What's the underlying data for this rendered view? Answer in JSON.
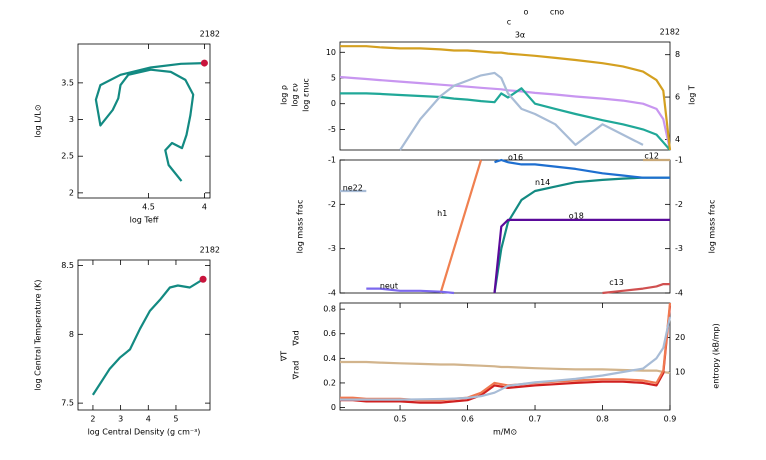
{
  "chart_data": [
    {
      "type": "line",
      "title": "2182",
      "xlabel": "log Teff",
      "ylabel": "log L/L⊙",
      "xlim": [
        5.13,
        3.95
      ],
      "ylim": [
        1.93,
        4.03
      ],
      "xticks": [
        4.5,
        4
      ],
      "yticks": [
        2,
        2.5,
        3,
        3.5
      ],
      "color": "#138a82",
      "marker_color": "#c8143c",
      "x": [
        4.205,
        4.32,
        4.35,
        4.29,
        4.2,
        4.16,
        4.125,
        4.1,
        4.17,
        4.3,
        4.48,
        4.68,
        4.75,
        4.77,
        4.82,
        4.93,
        4.97,
        4.93,
        4.75,
        4.48,
        4.21,
        4.0
      ],
      "values": [
        2.16,
        2.38,
        2.58,
        2.68,
        2.61,
        2.79,
        3.06,
        3.34,
        3.54,
        3.65,
        3.68,
        3.61,
        3.47,
        3.29,
        3.13,
        2.92,
        3.27,
        3.47,
        3.61,
        3.71,
        3.76,
        3.77
      ]
    },
    {
      "type": "line",
      "title": "2182",
      "xlabel": "log Central Density (g cm⁻³)",
      "ylabel": "log Central Temperature (K)",
      "xlim": [
        1.46,
        6.23
      ],
      "ylim": [
        7.45,
        8.54
      ],
      "xticks": [
        2,
        3,
        4,
        5
      ],
      "yticks": [
        7.5,
        8,
        8.5
      ],
      "color": "#138a82",
      "marker_color": "#c8143c",
      "x": [
        2.0,
        2.61,
        2.97,
        3.34,
        3.7,
        4.06,
        4.42,
        4.78,
        5.07,
        5.5,
        5.98
      ],
      "values": [
        7.56,
        7.75,
        7.83,
        7.89,
        8.04,
        8.17,
        8.25,
        8.34,
        8.355,
        8.34,
        8.4
      ]
    },
    {
      "type": "line",
      "title": "2182",
      "annotations": [
        "c",
        "o",
        "cno",
        "3α"
      ],
      "y2label": "log T",
      "xlim": [
        0.411,
        0.9
      ],
      "ylim": [
        -9,
        12
      ],
      "yticks": [
        -5,
        0,
        5,
        10
      ],
      "y2lim": [
        3.5,
        8.6
      ],
      "y2ticks": [
        4,
        6,
        8
      ],
      "x": [
        0.411,
        0.43,
        0.45,
        0.47,
        0.5,
        0.53,
        0.56,
        0.58,
        0.6,
        0.62,
        0.64,
        0.65,
        0.66,
        0.68,
        0.7,
        0.73,
        0.76,
        0.8,
        0.83,
        0.86,
        0.88,
        0.89,
        0.9
      ],
      "series": [
        {
          "name": "log ρ",
          "color": "#c896f0",
          "values": [
            5.2,
            5,
            4.8,
            4.6,
            4.3,
            4,
            3.7,
            3.5,
            3.3,
            3.1,
            2.9,
            2.8,
            2.6,
            2.4,
            2.1,
            1.8,
            1.4,
            1.0,
            0.6,
            0,
            -1,
            -3,
            -9
          ]
        },
        {
          "name": "log εν",
          "color": "#20a898",
          "values": [
            2,
            2,
            2,
            1.9,
            1.7,
            1.5,
            1.3,
            1.0,
            0.8,
            0.5,
            0.3,
            2.0,
            1.2,
            3.0,
            0,
            -1,
            -2,
            -3.2,
            -4,
            -5,
            -6,
            -7.5,
            -9
          ]
        },
        {
          "name": "log εnuc",
          "color": "#a8bcd6",
          "values": [
            null,
            null,
            null,
            null,
            -9,
            -3,
            1.5,
            3.5,
            4.5,
            5.5,
            6,
            5,
            2,
            -1,
            -2,
            -4,
            -8,
            -4,
            -6,
            -8,
            null,
            null,
            null
          ]
        },
        {
          "name": "log T",
          "color": "#d4a020",
          "axis": "y2",
          "values": [
            8.4,
            8.4,
            8.4,
            8.35,
            8.3,
            8.3,
            8.25,
            8.2,
            8.2,
            8.15,
            8.1,
            8.1,
            8.05,
            8.0,
            7.95,
            7.85,
            7.75,
            7.6,
            7.45,
            7.2,
            6.8,
            6.3,
            3.5
          ]
        }
      ]
    },
    {
      "type": "line",
      "ylabel": "log mass frac",
      "y2label": "log mass frac",
      "xlim": [
        0.411,
        0.9
      ],
      "ylim": [
        -4,
        -1
      ],
      "yticks": [
        -4,
        -3,
        -2,
        -1
      ],
      "y2lim": [
        -4,
        -1
      ],
      "y2ticks": [
        -4,
        -3,
        -2,
        -1
      ],
      "x": [
        0.411,
        0.43,
        0.45,
        0.47,
        0.5,
        0.53,
        0.56,
        0.58,
        0.6,
        0.62,
        0.64,
        0.65,
        0.66,
        0.68,
        0.7,
        0.73,
        0.76,
        0.8,
        0.83,
        0.86,
        0.88,
        0.89,
        0.9
      ],
      "series": [
        {
          "name": "ne22",
          "color": "#a8bcd6",
          "values": [
            -1.7,
            -1.7,
            -1.7,
            null,
            null,
            null,
            null,
            null,
            null,
            null,
            null,
            null,
            null,
            null,
            null,
            null,
            null,
            null,
            null,
            null,
            null,
            null,
            null
          ]
        },
        {
          "name": "h1",
          "color": "#f08050",
          "values": [
            null,
            null,
            null,
            null,
            null,
            null,
            -4,
            -3,
            -2,
            -1,
            null,
            null,
            null,
            null,
            null,
            null,
            null,
            null,
            null,
            null,
            null,
            null,
            null
          ]
        },
        {
          "name": "neut",
          "color": "#7b68ee",
          "values": [
            null,
            null,
            -3.9,
            -3.9,
            -3.95,
            -3.95,
            -3.97,
            -4,
            null,
            null,
            null,
            null,
            null,
            null,
            null,
            null,
            null,
            null,
            null,
            null,
            null,
            null,
            null
          ]
        },
        {
          "name": "n14",
          "color": "#138a82",
          "values": [
            null,
            null,
            null,
            null,
            null,
            null,
            null,
            null,
            null,
            null,
            -4,
            -3,
            -2.4,
            -1.9,
            -1.7,
            -1.6,
            -1.5,
            -1.45,
            -1.42,
            -1.4,
            -1.4,
            -1.4,
            -1.4
          ]
        },
        {
          "name": "o18",
          "color": "#5a0a9a",
          "values": [
            null,
            null,
            null,
            null,
            null,
            null,
            null,
            null,
            null,
            null,
            -4,
            -2.5,
            -2.35,
            -2.35,
            -2.35,
            -2.35,
            -2.35,
            -2.35,
            -2.35,
            -2.35,
            -2.35,
            -2.35,
            -2.35
          ]
        },
        {
          "name": "c13",
          "color": "#d05050",
          "values": [
            null,
            null,
            null,
            null,
            null,
            null,
            null,
            null,
            null,
            null,
            null,
            null,
            null,
            null,
            null,
            null,
            null,
            -4,
            -3.95,
            -3.9,
            -3.85,
            -3.8,
            -3.8
          ]
        },
        {
          "name": "o16",
          "color": "#1e6fd0",
          "values": [
            null,
            null,
            null,
            null,
            null,
            null,
            null,
            null,
            null,
            null,
            -1.05,
            -1.0,
            -1.05,
            -1.1,
            -1.1,
            -1.15,
            -1.2,
            -1.3,
            -1.35,
            -1.4,
            -1.4,
            -1.4,
            -1.4
          ]
        },
        {
          "name": "c12",
          "color": "#c8a878",
          "values": [
            null,
            null,
            null,
            null,
            null,
            null,
            null,
            null,
            null,
            null,
            null,
            null,
            null,
            null,
            null,
            null,
            null,
            null,
            null,
            -1.0,
            -1.0,
            -1.0,
            -1.0
          ]
        }
      ]
    },
    {
      "type": "line",
      "xlabel": "m/M⊙",
      "y2label": "entropy (kB/mp)",
      "xlim": [
        0.411,
        0.9
      ],
      "ylim": [
        -0.02,
        0.85
      ],
      "xticks": [
        0.5,
        0.6,
        0.7,
        0.8,
        0.9
      ],
      "yticks": [
        0,
        0.2,
        0.4,
        0.6,
        0.8
      ],
      "y2lim": [
        -1,
        30
      ],
      "y2ticks": [
        10,
        20
      ],
      "x": [
        0.411,
        0.43,
        0.45,
        0.47,
        0.5,
        0.53,
        0.56,
        0.58,
        0.6,
        0.62,
        0.64,
        0.65,
        0.66,
        0.68,
        0.7,
        0.73,
        0.76,
        0.8,
        0.83,
        0.86,
        0.88,
        0.89,
        0.9
      ],
      "series": [
        {
          "name": "∇ad",
          "color": "#d2b48c",
          "values": [
            0.37,
            0.37,
            0.37,
            0.365,
            0.36,
            0.355,
            0.35,
            0.35,
            0.345,
            0.34,
            0.335,
            0.33,
            0.33,
            0.325,
            0.32,
            0.315,
            0.31,
            0.31,
            0.305,
            0.3,
            0.3,
            0.29,
            0.28
          ]
        },
        {
          "name": "∇T",
          "color": "#d02020",
          "values": [
            0.06,
            0.06,
            0.05,
            0.05,
            0.05,
            0.04,
            0.04,
            0.05,
            0.06,
            0.1,
            0.18,
            0.17,
            0.16,
            0.17,
            0.18,
            0.19,
            0.2,
            0.21,
            0.21,
            0.2,
            0.18,
            0.28,
            0.83
          ]
        },
        {
          "name": "∇rad",
          "color": "#f07850",
          "values": [
            0.08,
            0.08,
            0.07,
            0.07,
            0.07,
            0.06,
            0.06,
            0.07,
            0.08,
            0.12,
            0.2,
            0.19,
            0.18,
            0.19,
            0.2,
            0.21,
            0.22,
            0.23,
            0.23,
            0.22,
            0.2,
            0.3,
            0.85
          ]
        },
        {
          "name": "entropy (kB/mp)",
          "color": "#a8bcd6",
          "axis": "y2",
          "values": [
            2,
            2,
            2,
            2,
            2,
            2.1,
            2.2,
            2.3,
            2.5,
            3,
            4,
            5,
            6,
            6.5,
            7,
            7.5,
            8,
            9,
            10,
            11,
            14,
            17,
            26
          ]
        }
      ]
    }
  ]
}
